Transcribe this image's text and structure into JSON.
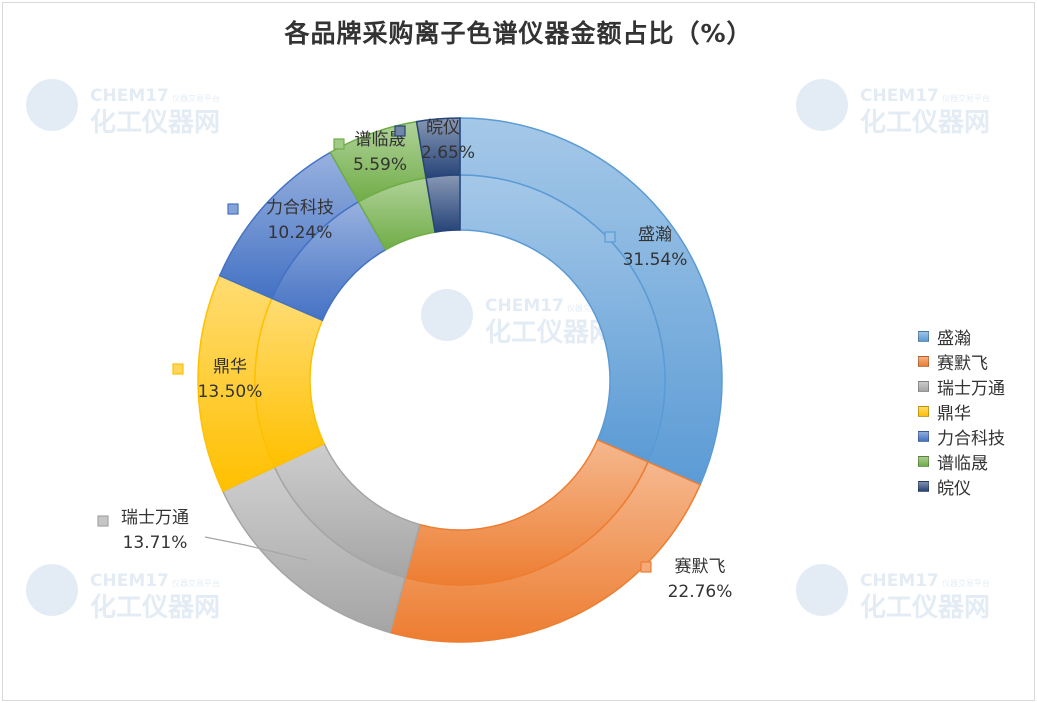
{
  "chart_data": {
    "type": "pie",
    "variant": "double-ring-donut",
    "title": "各品牌采购离子色谱仪器金额占比（%）",
    "categories": [
      "盛瀚",
      "赛默飞",
      "瑞士万通",
      "鼎华",
      "力合科技",
      "谱临晟",
      "皖仪"
    ],
    "values": [
      31.54,
      22.76,
      13.71,
      13.5,
      10.24,
      5.59,
      2.65
    ],
    "value_labels": [
      "31.54%",
      "22.76%",
      "13.71%",
      "13.50%",
      "10.24%",
      "5.59%",
      "2.65%"
    ],
    "unit": "%",
    "colors": [
      "#5b9bd5",
      "#ed7d31",
      "#a5a5a5",
      "#ffc000",
      "#4472c4",
      "#70ad47",
      "#264478"
    ],
    "legend_position": "right"
  },
  "watermark": {
    "brand": "CHEM17",
    "tagline": "仪器交易平台",
    "name": "化工仪器网"
  }
}
